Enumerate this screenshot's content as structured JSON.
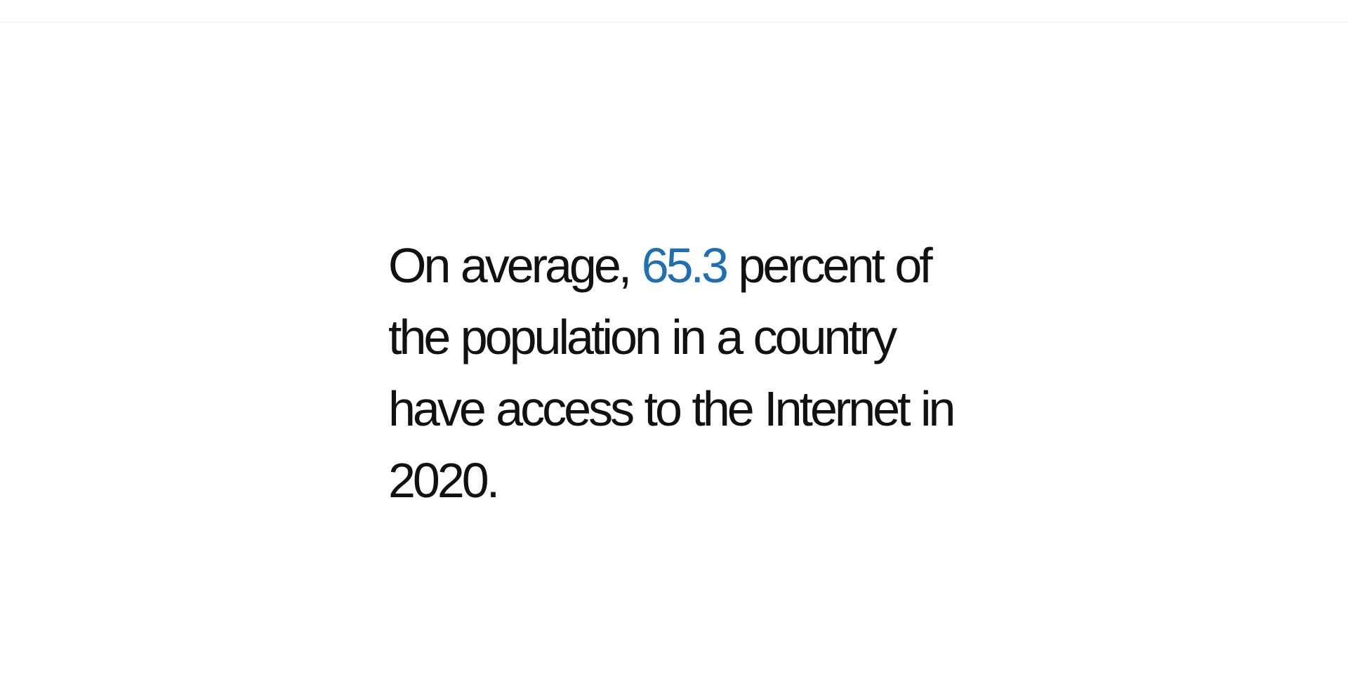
{
  "statement": {
    "before": "On average, ",
    "value": "65.3",
    "after": " percent of the population in a country have access to the Internet in 2020.",
    "highlight_color": "#1f6fb2",
    "text_color": "#111111"
  }
}
